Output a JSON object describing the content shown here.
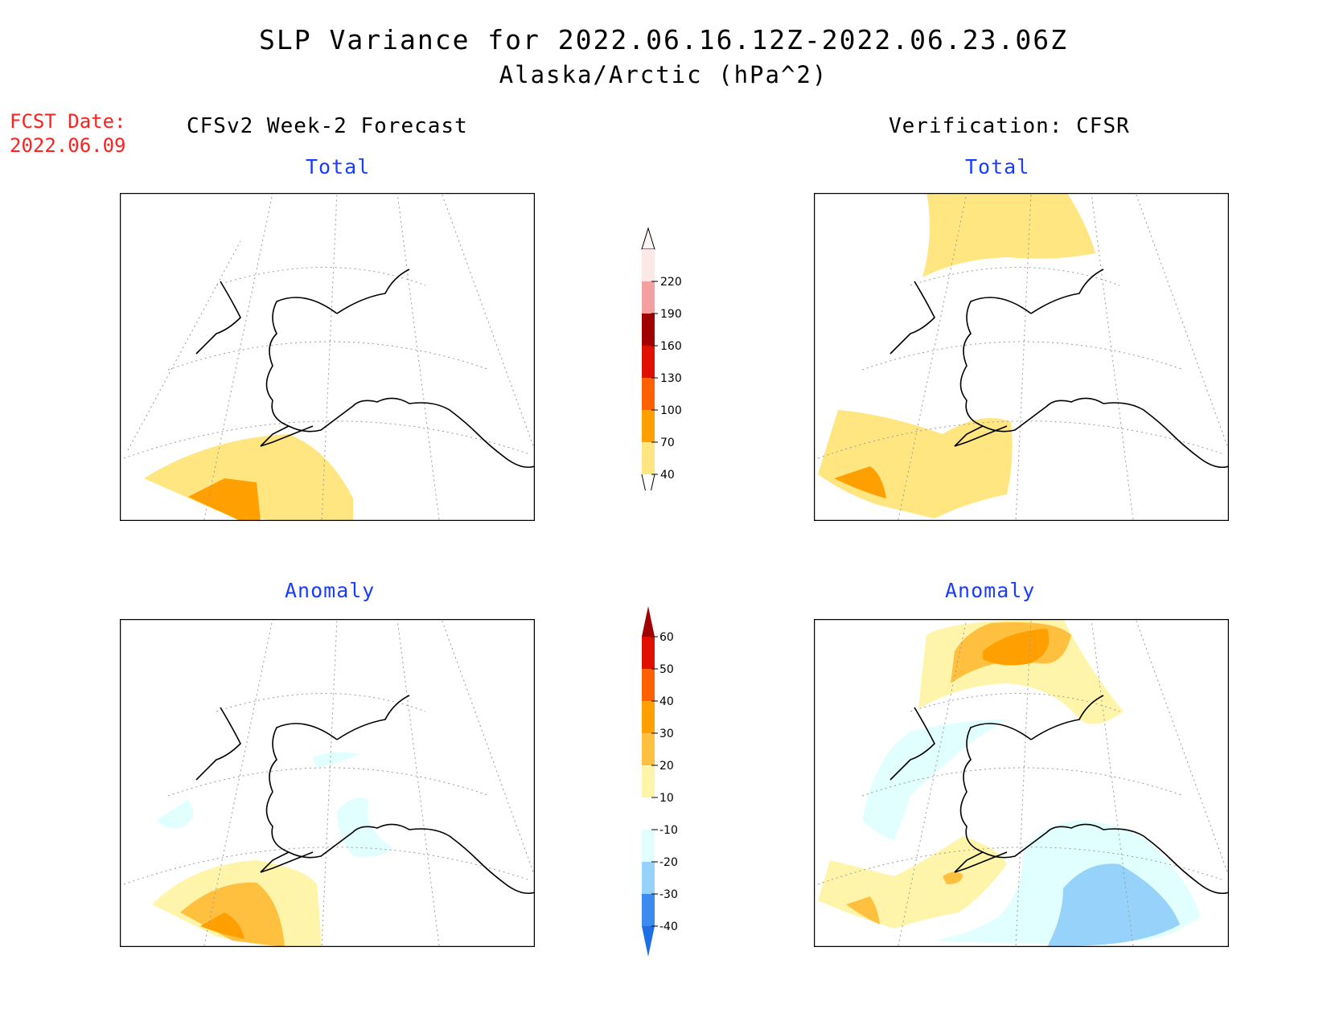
{
  "title": {
    "line1": "SLP Variance for 2022.06.16.12Z-2022.06.23.06Z",
    "line2": "Alaska/Arctic (hPa^2)"
  },
  "fcst_date": {
    "label": "FCST Date:",
    "value": "2022.06.09"
  },
  "columns": {
    "left": "CFSv2 Week-2 Forecast",
    "right": "Verification: CFSR"
  },
  "panels": {
    "fc_total": "Total",
    "fc_anom": "Anomaly",
    "ver_total": "Total",
    "ver_anom": "Anomaly"
  },
  "colorbar_total": {
    "labels": [
      "40",
      "70",
      "100",
      "130",
      "160",
      "190",
      "220"
    ],
    "colors": [
      "#ffe680",
      "#ffa000",
      "#ff6000",
      "#e01000",
      "#a00000",
      "#f4a0a0",
      "#fde8e8"
    ]
  },
  "colorbar_anom": {
    "labels": [
      "-40",
      "-30",
      "-20",
      "-10",
      "10",
      "20",
      "30",
      "40",
      "50",
      "60"
    ],
    "colors": [
      "#1e6ee6",
      "#3c8cf0",
      "#96d2fa",
      "#e1ffff",
      "#ffffff",
      "#fff5aa",
      "#ffc040",
      "#ffa000",
      "#ff6000",
      "#e01000",
      "#a00000"
    ]
  }
}
